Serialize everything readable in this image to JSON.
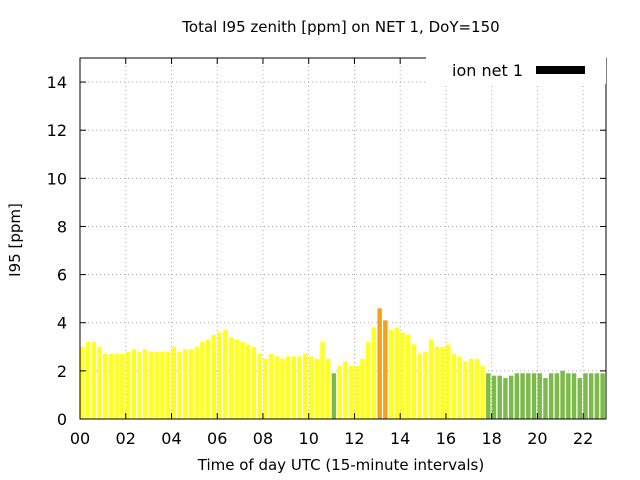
{
  "chart_data": {
    "type": "bar",
    "title": "Total I95 zenith [ppm] on NET 1, DoY=150",
    "xlabel": "Time of day UTC (15-minute intervals)",
    "ylabel": "I95 [ppm]",
    "xlim": [
      0,
      23
    ],
    "ylim": [
      0,
      15
    ],
    "x_ticks": [
      "00",
      "02",
      "04",
      "06",
      "08",
      "10",
      "12",
      "14",
      "16",
      "18",
      "20",
      "22"
    ],
    "y_ticks": [
      "0",
      "2",
      "4",
      "6",
      "8",
      "10",
      "12",
      "14"
    ],
    "grid": true,
    "legend": {
      "label": "ion net 1",
      "color": "#000000",
      "placement": "top-right"
    },
    "interval_hours": 0.25,
    "category_colors": {
      "green": "#7cba4a",
      "yellow": "#ffff22",
      "yellowgold": "#f2df1e",
      "orange": "#f3a21a"
    },
    "values": [
      3.0,
      3.2,
      3.2,
      3.0,
      2.7,
      2.7,
      2.7,
      2.7,
      2.8,
      2.9,
      2.8,
      2.9,
      2.8,
      2.8,
      2.8,
      2.8,
      3.0,
      2.8,
      2.9,
      2.9,
      3.0,
      3.2,
      3.3,
      3.5,
      3.6,
      3.7,
      3.4,
      3.3,
      3.2,
      3.1,
      3.0,
      2.7,
      2.5,
      2.7,
      2.6,
      2.5,
      2.6,
      2.6,
      2.6,
      2.7,
      2.6,
      2.5,
      3.2,
      2.5,
      1.9,
      2.2,
      2.4,
      2.2,
      2.2,
      2.5,
      3.2,
      3.8,
      4.6,
      4.1,
      3.7,
      3.8,
      3.6,
      3.5,
      3.1,
      2.7,
      2.8,
      3.3,
      3.0,
      3.0,
      3.1,
      2.7,
      2.6,
      2.4,
      2.5,
      2.5,
      2.2,
      1.9,
      1.8,
      1.8,
      1.7,
      1.8,
      1.9,
      1.9,
      1.9,
      1.9,
      1.9,
      1.7,
      1.9,
      1.9,
      2.0,
      1.9,
      1.9,
      1.7,
      1.9,
      1.9,
      1.9,
      1.9
    ],
    "colors": [
      "yellow",
      "yellow",
      "yellow",
      "yellow",
      "yellow",
      "yellow",
      "yellow",
      "yellow",
      "yellow",
      "yellow",
      "yellow",
      "yellow",
      "yellow",
      "yellow",
      "yellow",
      "yellow",
      "yellow",
      "yellow",
      "yellow",
      "yellow",
      "yellow",
      "yellow",
      "yellow",
      "yellow",
      "yellow",
      "yellow",
      "yellow",
      "yellow",
      "yellow",
      "yellow",
      "yellow",
      "yellow",
      "yellow",
      "yellow",
      "yellow",
      "yellow",
      "yellow",
      "yellow",
      "yellow",
      "yellow",
      "yellow",
      "yellow",
      "yellow",
      "yellow",
      "green",
      "yellow",
      "yellow",
      "yellow",
      "yellow",
      "yellow",
      "yellow",
      "yellow",
      "orange",
      "orange",
      "yellow",
      "yellow",
      "yellow",
      "yellow",
      "yellow",
      "yellow",
      "yellow",
      "yellow",
      "yellow",
      "yellow",
      "yellow",
      "yellow",
      "yellow",
      "yellow",
      "yellow",
      "yellow",
      "yellow",
      "green",
      "green",
      "green",
      "green",
      "green",
      "green",
      "green",
      "green",
      "green",
      "green",
      "green",
      "green",
      "green",
      "green",
      "green",
      "green",
      "green",
      "green",
      "green",
      "green",
      "green"
    ]
  }
}
